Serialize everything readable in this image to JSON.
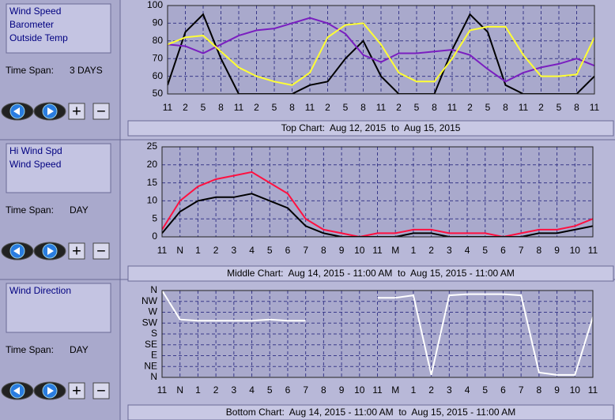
{
  "panels": [
    {
      "time_span_label": "Time Span:",
      "time_span": "3 DAYS",
      "zoom_in": "+",
      "zoom_out": "−"
    },
    {
      "time_span_label": "Time Span:",
      "time_span": "DAY",
      "zoom_in": "+",
      "zoom_out": "−"
    },
    {
      "time_span_label": "Time Span:",
      "time_span": "DAY",
      "zoom_in": "+",
      "zoom_out": "−"
    }
  ],
  "chart_data": [
    {
      "type": "line",
      "title": "Top Chart:  Aug 12, 2015  to  Aug 15, 2015",
      "grid": true,
      "x": [
        0,
        3,
        6,
        9,
        12,
        15,
        18,
        21,
        24,
        27,
        30,
        33,
        36,
        39,
        42,
        45,
        48,
        51,
        54,
        57,
        60,
        63,
        66,
        69,
        72
      ],
      "xlim": [
        0,
        72
      ],
      "xticks": [
        {
          "value": 0,
          "label": "11"
        },
        {
          "value": 3,
          "label": "2"
        },
        {
          "value": 6,
          "label": "5"
        },
        {
          "value": 9,
          "label": "8"
        },
        {
          "value": 12,
          "label": "11"
        },
        {
          "value": 15,
          "label": "2"
        },
        {
          "value": 18,
          "label": "5"
        },
        {
          "value": 21,
          "label": "8"
        },
        {
          "value": 24,
          "label": "11"
        },
        {
          "value": 27,
          "label": "2"
        },
        {
          "value": 30,
          "label": "5"
        },
        {
          "value": 33,
          "label": "8"
        },
        {
          "value": 36,
          "label": "11"
        },
        {
          "value": 39,
          "label": "2"
        },
        {
          "value": 42,
          "label": "5"
        },
        {
          "value": 45,
          "label": "8"
        },
        {
          "value": 48,
          "label": "11"
        },
        {
          "value": 51,
          "label": "2"
        },
        {
          "value": 54,
          "label": "5"
        },
        {
          "value": 57,
          "label": "8"
        },
        {
          "value": 60,
          "label": "11"
        },
        {
          "value": 63,
          "label": "2"
        },
        {
          "value": 66,
          "label": "5"
        },
        {
          "value": 69,
          "label": "8"
        },
        {
          "value": 72,
          "label": "11"
        }
      ],
      "ylim": [
        50,
        100
      ],
      "yticks": [
        50,
        60,
        70,
        80,
        90,
        100
      ],
      "series": [
        {
          "name": "Wind Speed",
          "color": "#000000",
          "values": [
            55,
            85,
            95,
            70,
            50,
            50,
            50,
            50,
            55,
            57,
            70,
            80,
            60,
            50,
            50,
            50,
            75,
            95,
            85,
            55,
            50,
            50,
            50,
            50,
            60
          ]
        },
        {
          "name": "Barometer",
          "color": "#7a1fc0",
          "values": [
            78,
            77,
            73,
            78,
            83,
            86,
            87,
            90,
            93,
            90,
            84,
            72,
            68,
            73,
            73,
            74,
            75,
            72,
            64,
            57,
            62,
            65,
            67,
            70,
            66
          ]
        },
        {
          "name": "Outside Temp",
          "color": "#ffff33",
          "values": [
            78,
            82,
            83,
            74,
            65,
            60,
            57,
            55,
            62,
            82,
            89,
            90,
            78,
            62,
            57,
            57,
            70,
            86,
            88,
            88,
            72,
            60,
            60,
            61,
            82
          ]
        }
      ]
    },
    {
      "type": "line",
      "title": "Middle Chart:  Aug 14, 2015 - 11:00 AM  to  Aug 15, 2015 - 11:00 AM",
      "grid": true,
      "x": [
        0,
        1,
        2,
        3,
        4,
        5,
        6,
        7,
        8,
        9,
        10,
        11,
        12,
        13,
        14,
        15,
        16,
        17,
        18,
        19,
        20,
        21,
        22,
        23,
        24
      ],
      "xlim": [
        0,
        24
      ],
      "xticks": [
        {
          "value": 0,
          "label": "11"
        },
        {
          "value": 1,
          "label": "N"
        },
        {
          "value": 2,
          "label": "1"
        },
        {
          "value": 3,
          "label": "2"
        },
        {
          "value": 4,
          "label": "3"
        },
        {
          "value": 5,
          "label": "4"
        },
        {
          "value": 6,
          "label": "5"
        },
        {
          "value": 7,
          "label": "6"
        },
        {
          "value": 8,
          "label": "7"
        },
        {
          "value": 9,
          "label": "8"
        },
        {
          "value": 10,
          "label": "9"
        },
        {
          "value": 11,
          "label": "10"
        },
        {
          "value": 12,
          "label": "11"
        },
        {
          "value": 13,
          "label": "M"
        },
        {
          "value": 14,
          "label": "1"
        },
        {
          "value": 15,
          "label": "2"
        },
        {
          "value": 16,
          "label": "3"
        },
        {
          "value": 17,
          "label": "4"
        },
        {
          "value": 18,
          "label": "5"
        },
        {
          "value": 19,
          "label": "6"
        },
        {
          "value": 20,
          "label": "7"
        },
        {
          "value": 21,
          "label": "8"
        },
        {
          "value": 22,
          "label": "9"
        },
        {
          "value": 23,
          "label": "10"
        },
        {
          "value": 24,
          "label": "11"
        }
      ],
      "ylim": [
        0,
        25
      ],
      "yticks": [
        0,
        5,
        10,
        15,
        20,
        25
      ],
      "series": [
        {
          "name": "Hi Wind Spd",
          "color": "#ff1040",
          "values": [
            2,
            10,
            14,
            16,
            17,
            18,
            15,
            12,
            5,
            2,
            1,
            0,
            1,
            1,
            2,
            2,
            1,
            1,
            1,
            0,
            1,
            2,
            2,
            3,
            5
          ]
        },
        {
          "name": "Wind Speed",
          "color": "#000000",
          "values": [
            1,
            7,
            10,
            11,
            11,
            12,
            10,
            8,
            3,
            1,
            0,
            0,
            0,
            0,
            1,
            1,
            0,
            0,
            0,
            0,
            0,
            1,
            1,
            2,
            3
          ]
        }
      ]
    },
    {
      "type": "line",
      "title": "Bottom Chart:  Aug 14, 2015 - 11:00 AM  to  Aug 15, 2015 - 11:00 AM",
      "grid": true,
      "x": [
        0,
        1,
        2,
        3,
        4,
        5,
        6,
        7,
        8,
        9,
        10,
        11,
        12,
        13,
        14,
        15,
        16,
        17,
        18,
        19,
        20,
        21,
        22,
        23,
        24
      ],
      "xlim": [
        0,
        24
      ],
      "xticks": [
        {
          "value": 0,
          "label": "11"
        },
        {
          "value": 1,
          "label": "N"
        },
        {
          "value": 2,
          "label": "1"
        },
        {
          "value": 3,
          "label": "2"
        },
        {
          "value": 4,
          "label": "3"
        },
        {
          "value": 5,
          "label": "4"
        },
        {
          "value": 6,
          "label": "5"
        },
        {
          "value": 7,
          "label": "6"
        },
        {
          "value": 8,
          "label": "7"
        },
        {
          "value": 9,
          "label": "8"
        },
        {
          "value": 10,
          "label": "9"
        },
        {
          "value": 11,
          "label": "10"
        },
        {
          "value": 12,
          "label": "11"
        },
        {
          "value": 13,
          "label": "M"
        },
        {
          "value": 14,
          "label": "1"
        },
        {
          "value": 15,
          "label": "2"
        },
        {
          "value": 16,
          "label": "3"
        },
        {
          "value": 17,
          "label": "4"
        },
        {
          "value": 18,
          "label": "5"
        },
        {
          "value": 19,
          "label": "6"
        },
        {
          "value": 20,
          "label": "7"
        },
        {
          "value": 21,
          "label": "8"
        },
        {
          "value": 22,
          "label": "9"
        },
        {
          "value": 23,
          "label": "10"
        },
        {
          "value": 24,
          "label": "11"
        }
      ],
      "ylim": [
        0,
        360
      ],
      "yticks": [
        {
          "value": 0,
          "label": "N"
        },
        {
          "value": 45,
          "label": "NE"
        },
        {
          "value": 90,
          "label": "E"
        },
        {
          "value": 135,
          "label": "SE"
        },
        {
          "value": 180,
          "label": "S"
        },
        {
          "value": 225,
          "label": "SW"
        },
        {
          "value": 270,
          "label": "W"
        },
        {
          "value": 315,
          "label": "NW"
        },
        {
          "value": 360,
          "label": "N"
        }
      ],
      "series": [
        {
          "name": "Wind Direction",
          "color": "#ffffff",
          "values": [
            360,
            240,
            235,
            235,
            235,
            235,
            240,
            235,
            235,
            null,
            null,
            null,
            330,
            330,
            340,
            10,
            340,
            345,
            345,
            345,
            340,
            20,
            10,
            10,
            250
          ]
        }
      ]
    }
  ]
}
